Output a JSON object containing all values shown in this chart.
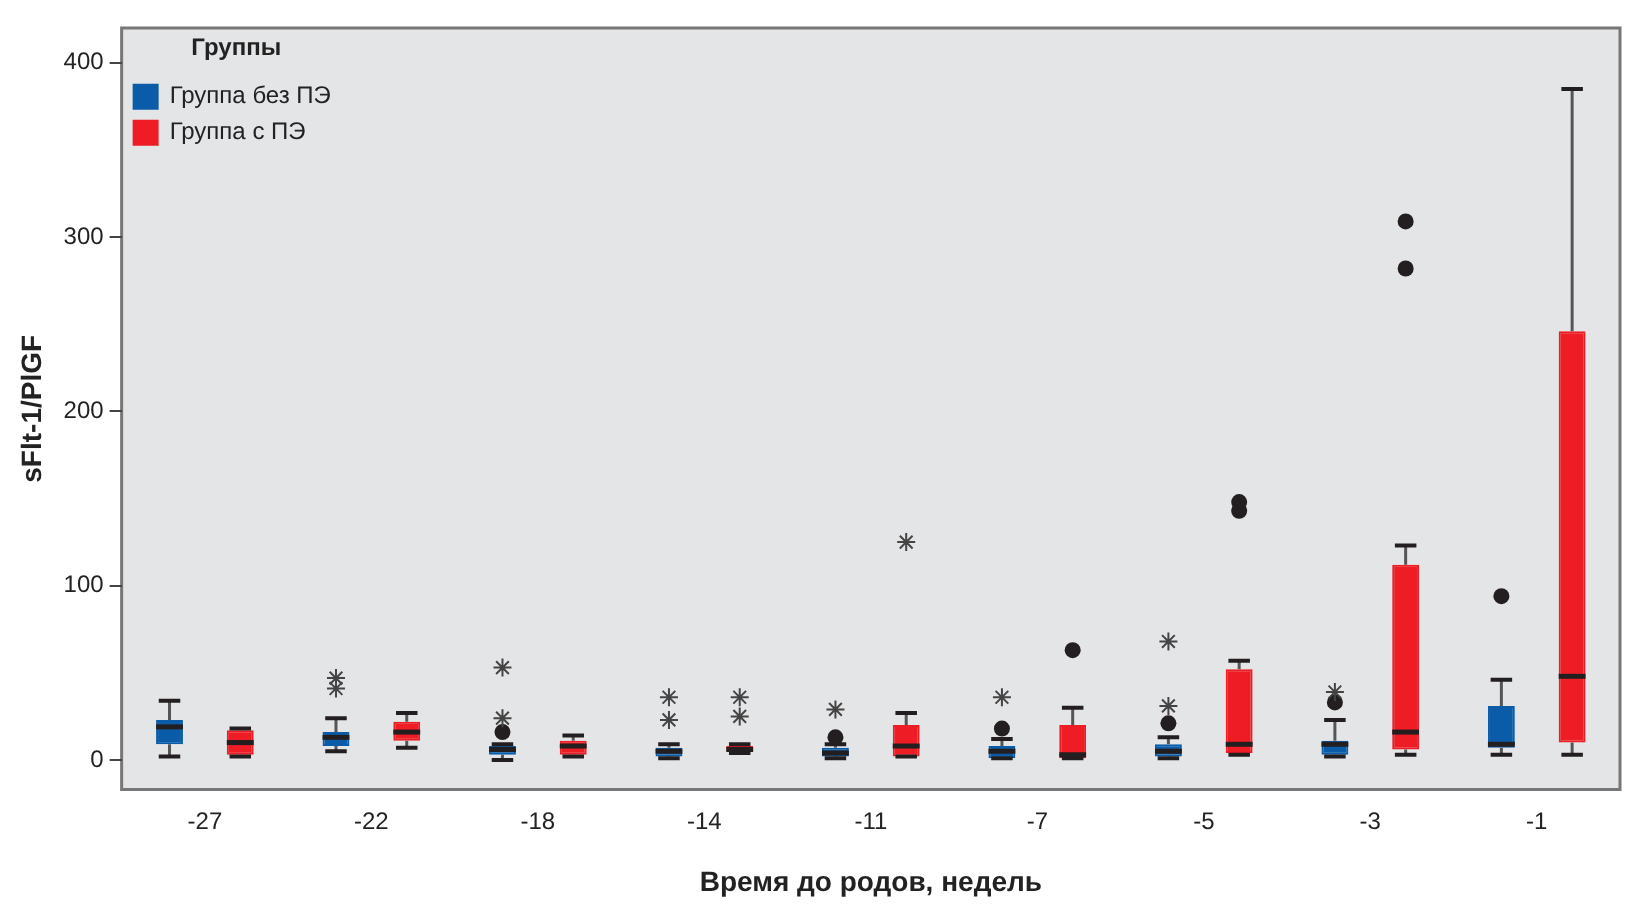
{
  "chart_data": {
    "type": "box",
    "xlabel": "Время до родов, недель",
    "ylabel": "sFlt-1/PlGF",
    "legend_title": "Группы",
    "legend": "top left",
    "grid": false,
    "categories": [
      "-27",
      "-22",
      "-18",
      "-14",
      "-11",
      "-7",
      "-5",
      "-3",
      "-1"
    ],
    "ylim": [
      -17,
      420
    ],
    "yticks": [
      0,
      100,
      200,
      300,
      400
    ],
    "series": [
      {
        "name": "Группа без ПЭ",
        "color": "#0b5ca8",
        "boxes": [
          {
            "low": 2,
            "q1": 9,
            "median": 19,
            "q3": 23,
            "high": 34
          },
          {
            "low": 5,
            "q1": 8,
            "median": 13,
            "q3": 16,
            "high": 24,
            "outliers": [
              47,
              41
            ]
          },
          {
            "low": 0,
            "q1": 3,
            "median": 6,
            "q3": 8,
            "high": 9,
            "outliers": [
              16,
              24,
              53
            ]
          },
          {
            "low": 1,
            "q1": 2,
            "median": 5,
            "q3": 7,
            "high": 9,
            "outliers": [
              23,
              36
            ]
          },
          {
            "low": 1,
            "q1": 2,
            "median": 4,
            "q3": 7,
            "high": 9,
            "outliers": [
              13,
              29
            ]
          },
          {
            "low": 1,
            "q1": 1,
            "median": 5,
            "q3": 8,
            "high": 12,
            "outliers": [
              18,
              36
            ]
          },
          {
            "low": 1,
            "q1": 2,
            "median": 5,
            "q3": 9,
            "high": 13,
            "outliers": [
              21,
              31,
              68
            ]
          },
          {
            "low": 2,
            "q1": 3,
            "median": 9,
            "q3": 11,
            "high": 23,
            "outliers": [
              33,
              39
            ]
          },
          {
            "low": 3,
            "q1": 7,
            "median": 9,
            "q3": 31,
            "high": 46,
            "outliers": [
              94
            ]
          }
        ]
      },
      {
        "name": "Группа с ПЭ",
        "color": "#ee1c25",
        "boxes": [
          {
            "low": 2,
            "q1": 3,
            "median": 10,
            "q3": 17,
            "high": 18
          },
          {
            "low": 7,
            "q1": 11,
            "median": 16,
            "q3": 22,
            "high": 27
          },
          {
            "low": 2,
            "q1": 3,
            "median": 8,
            "q3": 11,
            "high": 14
          },
          {
            "low": 4,
            "q1": 5,
            "median": 6,
            "q3": 8,
            "high": 9,
            "outliers": [
              25,
              36
            ]
          },
          {
            "low": 2,
            "q1": 2,
            "median": 8,
            "q3": 20,
            "high": 27,
            "outliers": [
              125
            ]
          },
          {
            "low": 1,
            "q1": 1,
            "median": 3,
            "q3": 20,
            "high": 30,
            "outliers": [
              63
            ]
          },
          {
            "low": 3,
            "q1": 4,
            "median": 9,
            "q3": 52,
            "high": 57,
            "outliers": [
              143,
              148
            ]
          },
          {
            "low": 3,
            "q1": 6,
            "median": 16,
            "q3": 112,
            "high": 123,
            "outliers": [
              282,
              309
            ]
          },
          {
            "low": 3,
            "q1": 10,
            "median": 48,
            "q3": 246,
            "high": 385
          }
        ]
      }
    ]
  }
}
